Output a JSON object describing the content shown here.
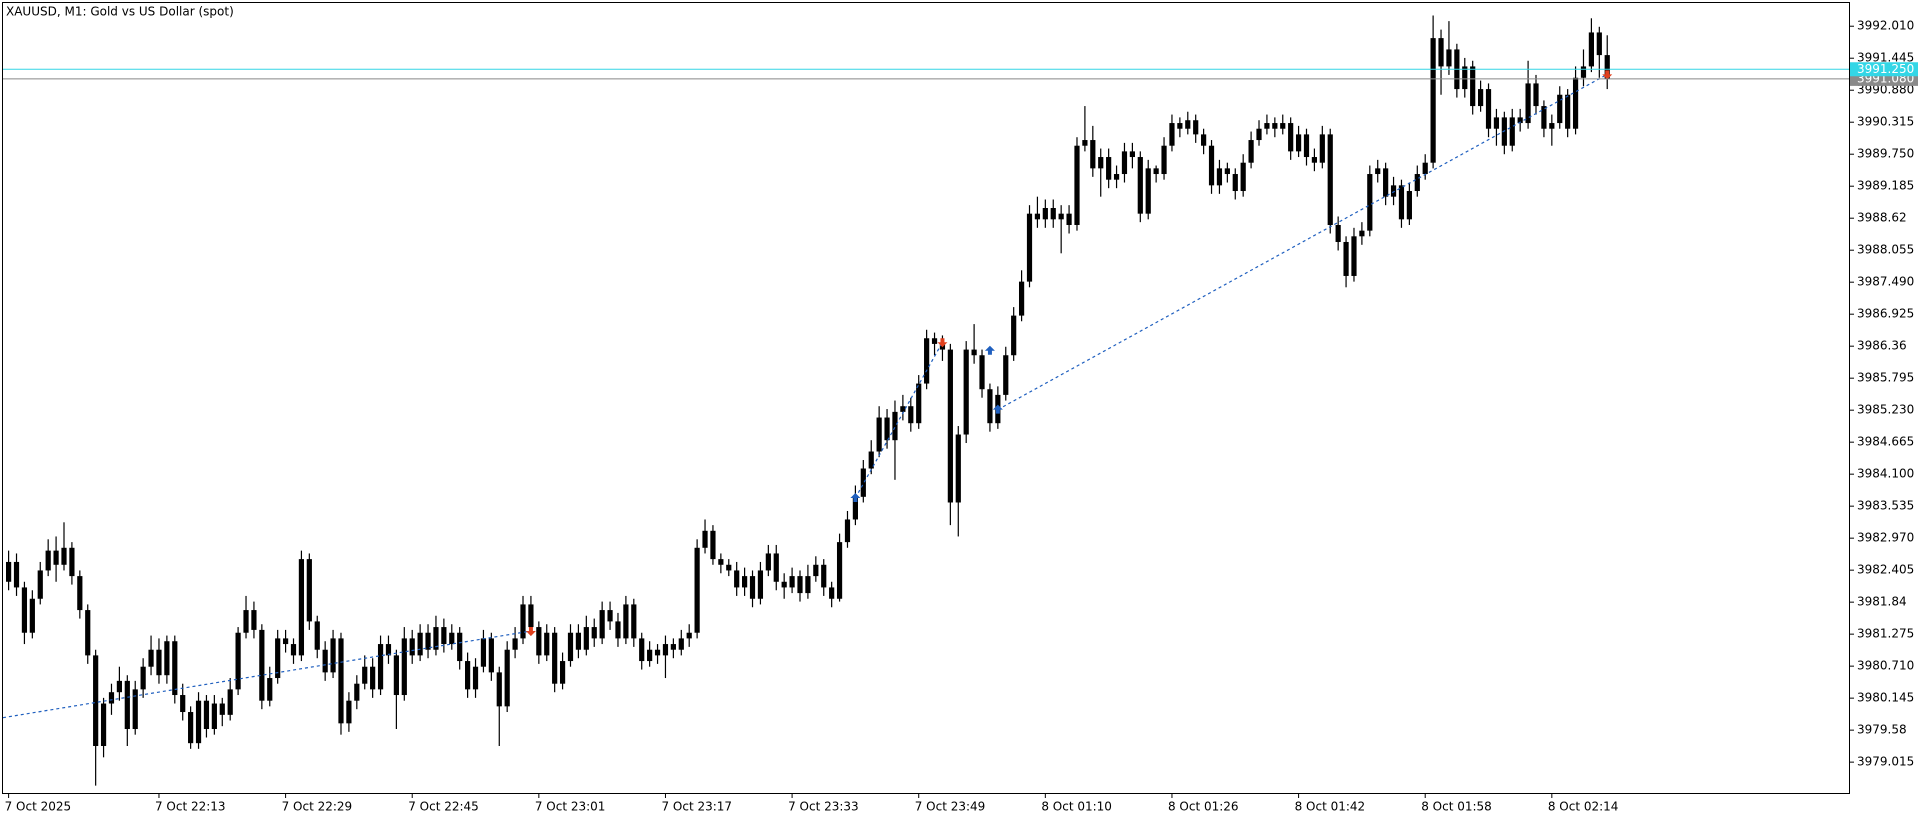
{
  "chart_data": {
    "type": "candlestick",
    "title": "XAUUSD, M1:  Gold vs US Dollar (spot)",
    "color": "#000000",
    "grid": false,
    "categories": [
      "7 Oct 2025",
      null,
      null,
      null,
      null,
      null,
      null,
      null,
      null,
      null,
      null,
      null,
      null,
      null,
      null,
      null,
      null,
      null,
      null,
      "7 Oct 22:13",
      null,
      null,
      null,
      null,
      null,
      null,
      null,
      null,
      null,
      null,
      null,
      null,
      null,
      null,
      null,
      "7 Oct 22:29",
      null,
      null,
      null,
      null,
      null,
      null,
      null,
      null,
      null,
      null,
      null,
      null,
      null,
      null,
      null,
      "7 Oct 22:45",
      null,
      null,
      null,
      null,
      null,
      null,
      null,
      null,
      null,
      null,
      null,
      null,
      null,
      null,
      null,
      "7 Oct 23:01",
      null,
      null,
      null,
      null,
      null,
      null,
      null,
      null,
      null,
      null,
      null,
      null,
      null,
      null,
      null,
      "7 Oct 23:17",
      null,
      null,
      null,
      null,
      null,
      null,
      null,
      null,
      null,
      null,
      null,
      null,
      null,
      null,
      null,
      "7 Oct 23:33",
      null,
      null,
      null,
      null,
      null,
      null,
      null,
      null,
      null,
      null,
      null,
      null,
      null,
      null,
      null,
      "7 Oct 23:49",
      null,
      null,
      null,
      null,
      null,
      null,
      null,
      null,
      null,
      null,
      null,
      null,
      null,
      null,
      null,
      "8 Oct 01:10",
      null,
      null,
      null,
      null,
      null,
      null,
      null,
      null,
      null,
      null,
      null,
      null,
      null,
      null,
      null,
      "8 Oct 01:26",
      null,
      null,
      null,
      null,
      null,
      null,
      null,
      null,
      null,
      null,
      null,
      null,
      null,
      null,
      null,
      "8 Oct 01:42",
      null,
      null,
      null,
      null,
      null,
      null,
      null,
      null,
      null,
      null,
      null,
      null,
      null,
      null,
      null,
      "8 Oct 01:58",
      null,
      null,
      null,
      null,
      null,
      null,
      null,
      null,
      null,
      null,
      null,
      null,
      null,
      null,
      null,
      "8 Oct 02:14",
      null,
      null,
      null,
      null,
      null,
      null,
      null
    ],
    "open": [
      3982.2,
      3982.55,
      3982.1,
      3981.3,
      3981.9,
      3982.4,
      3982.75,
      3982.5,
      3982.8,
      3982.3,
      3981.7,
      3980.9,
      3979.3,
      3980.05,
      3980.25,
      3980.45,
      3979.6,
      3980.3,
      3980.7,
      3981.0,
      3980.55,
      3981.15,
      3980.2,
      3979.9,
      3979.35,
      3980.1,
      3979.6,
      3980.05,
      3979.85,
      3980.3,
      3981.3,
      3981.7,
      3981.35,
      3980.1,
      3980.5,
      3981.2,
      3981.1,
      3980.9,
      3982.6,
      3981.5,
      3981.0,
      3980.6,
      3981.2,
      3979.7,
      3980.1,
      3980.4,
      3980.7,
      3980.3,
      3981.1,
      3980.9,
      3980.2,
      3981.2,
      3980.9,
      3981.3,
      3981.0,
      3981.4,
      3981.1,
      3981.3,
      3980.8,
      3980.3,
      3980.7,
      3981.2,
      3980.6,
      3980.0,
      3981.0,
      3981.2,
      3981.8,
      3981.4,
      3980.9,
      3981.3,
      3980.4,
      3980.8,
      3981.3,
      3981.0,
      3981.4,
      3981.2,
      3981.7,
      3981.5,
      3981.2,
      3981.8,
      3981.2,
      3980.8,
      3981.0,
      3980.9,
      3981.1,
      3981.0,
      3981.2,
      3981.3,
      3982.8,
      3983.1,
      3982.6,
      3982.5,
      3982.4,
      3982.1,
      3982.3,
      3981.9,
      3982.4,
      3982.7,
      3982.2,
      3982.1,
      3982.3,
      3982.0,
      3982.3,
      3982.5,
      3982.1,
      3981.9,
      3982.9,
      3983.3,
      3983.7,
      3984.2,
      3984.5,
      3985.1,
      3984.7,
      3985.2,
      3985.3,
      3985.0,
      3985.7,
      3986.5,
      3986.4,
      3986.3,
      3983.6,
      3984.8,
      3986.3,
      3986.2,
      3985.6,
      3985.0,
      3985.5,
      3986.2,
      3986.9,
      3987.5,
      3988.7,
      3988.6,
      3988.8,
      3988.6,
      3988.7,
      3988.5,
      3989.9,
      3990.0,
      3989.5,
      3989.7,
      3989.3,
      3989.4,
      3989.8,
      3989.7,
      3988.7,
      3989.5,
      3989.4,
      3989.9,
      3990.3,
      3990.2,
      3990.35,
      3990.1,
      3989.9,
      3989.2,
      3989.5,
      3989.4,
      3989.1,
      3989.6,
      3990.0,
      3990.2,
      3990.3,
      3990.2,
      3990.3,
      3989.8,
      3990.1,
      3989.7,
      3989.6,
      3990.1,
      3988.5,
      3988.2,
      3987.6,
      3988.3,
      3988.4,
      3989.4,
      3989.5,
      3989.0,
      3989.2,
      3988.6,
      3989.1,
      3989.4,
      3989.6,
      3991.8,
      3991.3,
      3991.6,
      3990.9,
      3991.3,
      3990.6,
      3990.9,
      3990.2,
      3990.4,
      3989.9,
      3990.4,
      3990.3,
      3991.0,
      3990.6,
      3990.2,
      3990.3,
      3990.8,
      3990.2,
      3991.1,
      3991.3,
      3991.9,
      3991.5
    ],
    "high": [
      3982.75,
      3982.7,
      3982.2,
      3982.05,
      3982.55,
      3982.95,
      3983.0,
      3983.25,
      3982.9,
      3982.4,
      3981.8,
      3981.0,
      3980.15,
      3980.4,
      3980.7,
      3980.55,
      3980.45,
      3980.85,
      3981.25,
      3981.2,
      3981.25,
      3981.25,
      3980.4,
      3980.0,
      3980.25,
      3980.2,
      3980.2,
      3980.15,
      3980.5,
      3981.4,
      3981.95,
      3981.85,
      3981.45,
      3980.7,
      3981.35,
      3981.35,
      3981.2,
      3982.75,
      3982.7,
      3981.6,
      3981.15,
      3981.35,
      3981.3,
      3980.25,
      3980.55,
      3980.9,
      3980.85,
      3981.25,
      3981.25,
      3981.0,
      3981.4,
      3981.35,
      3981.45,
      3981.45,
      3981.6,
      3981.55,
      3981.45,
      3981.4,
      3980.95,
      3980.85,
      3981.35,
      3981.3,
      3980.7,
      3981.15,
      3981.4,
      3981.95,
      3981.95,
      3981.5,
      3981.45,
      3981.4,
      3980.95,
      3981.45,
      3981.45,
      3981.6,
      3981.55,
      3981.85,
      3981.85,
      3981.65,
      3981.95,
      3981.9,
      3981.3,
      3981.15,
      3981.1,
      3981.25,
      3981.2,
      3981.35,
      3981.45,
      3982.95,
      3983.3,
      3983.2,
      3982.7,
      3982.6,
      3982.55,
      3982.45,
      3982.4,
      3982.55,
      3982.85,
      3982.85,
      3982.35,
      3982.45,
      3982.4,
      3982.5,
      3982.65,
      3982.6,
      3982.2,
      3983.05,
      3983.45,
      3983.9,
      3984.35,
      3984.7,
      3985.3,
      3985.25,
      3985.4,
      3985.5,
      3985.45,
      3985.85,
      3986.65,
      3986.6,
      3986.55,
      3986.4,
      3984.95,
      3986.45,
      3986.75,
      3986.3,
      3985.7,
      3985.65,
      3986.35,
      3987.05,
      3987.7,
      3988.85,
      3989.0,
      3988.95,
      3988.95,
      3988.85,
      3988.85,
      3990.05,
      3990.6,
      3990.25,
      3989.85,
      3989.85,
      3989.55,
      3989.95,
      3989.95,
      3989.8,
      3989.65,
      3989.55,
      3990.05,
      3990.45,
      3990.4,
      3990.5,
      3990.45,
      3990.2,
      3990.0,
      3989.65,
      3989.6,
      3989.5,
      3989.75,
      3990.15,
      3990.35,
      3990.45,
      3990.4,
      3990.45,
      3990.4,
      3990.25,
      3990.2,
      3989.85,
      3990.25,
      3990.2,
      3988.65,
      3988.3,
      3988.45,
      3988.55,
      3989.55,
      3989.65,
      3989.6,
      3989.35,
      3989.3,
      3989.25,
      3989.55,
      3989.75,
      3992.2,
      3991.95,
      3992.1,
      3991.7,
      3991.45,
      3991.4,
      3991.05,
      3991.0,
      3990.55,
      3990.5,
      3990.55,
      3990.55,
      3991.4,
      3991.15,
      3990.7,
      3990.45,
      3990.95,
      3990.9,
      3991.3,
      3991.6,
      3992.15,
      3992.0,
      3991.85
    ],
    "low": [
      3982.05,
      3981.95,
      3981.1,
      3981.2,
      3981.8,
      3982.3,
      3982.2,
      3982.4,
      3982.15,
      3981.55,
      3980.75,
      3978.6,
      3979.1,
      3979.85,
      3980.1,
      3979.3,
      3979.5,
      3980.15,
      3980.55,
      3980.4,
      3980.4,
      3980.05,
      3979.75,
      3979.25,
      3979.25,
      3979.45,
      3979.5,
      3979.65,
      3979.75,
      3980.2,
      3981.2,
      3981.2,
      3979.95,
      3980.0,
      3980.4,
      3980.95,
      3980.75,
      3980.8,
      3981.35,
      3980.85,
      3980.45,
      3980.5,
      3979.5,
      3979.55,
      3979.95,
      3980.3,
      3980.15,
      3980.2,
      3980.75,
      3979.6,
      3980.1,
      3980.75,
      3980.8,
      3980.85,
      3980.9,
      3980.95,
      3981.0,
      3980.65,
      3980.15,
      3980.15,
      3980.6,
      3980.45,
      3979.3,
      3979.9,
      3980.85,
      3981.1,
      3981.25,
      3980.75,
      3980.8,
      3980.25,
      3980.3,
      3980.7,
      3980.85,
      3980.9,
      3981.05,
      3981.1,
      3981.35,
      3981.05,
      3981.1,
      3981.05,
      3980.65,
      3980.7,
      3980.75,
      3980.5,
      3980.85,
      3980.9,
      3981.05,
      3981.2,
      3982.7,
      3982.5,
      3982.35,
      3982.3,
      3981.95,
      3981.95,
      3981.75,
      3981.8,
      3982.3,
      3982.05,
      3981.9,
      3982.0,
      3981.85,
      3981.9,
      3982.2,
      3981.95,
      3981.75,
      3981.85,
      3982.8,
      3983.2,
      3983.6,
      3984.1,
      3984.4,
      3984.55,
      3984.0,
      3985.05,
      3984.85,
      3984.9,
      3985.6,
      3986.2,
      3986.1,
      3983.2,
      3983.0,
      3984.65,
      3986.05,
      3985.45,
      3984.85,
      3984.9,
      3985.4,
      3986.1,
      3986.8,
      3987.4,
      3988.45,
      3988.45,
      3988.45,
      3988.0,
      3988.35,
      3988.4,
      3989.8,
      3989.35,
      3989.0,
      3989.15,
      3989.15,
      3989.25,
      3989.5,
      3988.55,
      3988.6,
      3989.25,
      3989.3,
      3989.8,
      3990.05,
      3990.1,
      3989.95,
      3989.75,
      3989.05,
      3989.05,
      3989.25,
      3988.95,
      3989.0,
      3989.5,
      3989.9,
      3990.1,
      3990.05,
      3990.1,
      3989.65,
      3989.7,
      3989.55,
      3989.45,
      3989.5,
      3988.35,
      3988.05,
      3987.4,
      3987.5,
      3988.15,
      3988.3,
      3989.25,
      3988.85,
      3988.85,
      3988.45,
      3988.5,
      3989.0,
      3989.3,
      3989.5,
      3990.8,
      3991.15,
      3990.75,
      3990.75,
      3990.45,
      3990.5,
      3990.05,
      3989.9,
      3989.75,
      3989.8,
      3990.15,
      3990.2,
      3990.45,
      3990.05,
      3989.9,
      3990.2,
      3990.05,
      3990.1,
      3990.95,
      3991.2,
      3991.1,
      3990.9
    ],
    "close": [
      3982.55,
      3982.1,
      3981.3,
      3981.9,
      3982.4,
      3982.75,
      3982.5,
      3982.8,
      3982.3,
      3981.7,
      3980.9,
      3979.3,
      3980.05,
      3980.25,
      3980.45,
      3979.6,
      3980.3,
      3980.7,
      3981.0,
      3980.55,
      3981.15,
      3980.2,
      3979.9,
      3979.35,
      3980.1,
      3979.6,
      3980.05,
      3979.85,
      3980.3,
      3981.3,
      3981.7,
      3981.35,
      3980.1,
      3980.5,
      3981.2,
      3981.1,
      3980.9,
      3982.6,
      3981.5,
      3981.0,
      3980.6,
      3981.2,
      3979.7,
      3980.1,
      3980.4,
      3980.7,
      3980.3,
      3981.1,
      3980.9,
      3980.2,
      3981.2,
      3980.9,
      3981.3,
      3981.0,
      3981.4,
      3981.1,
      3981.3,
      3980.8,
      3980.3,
      3980.7,
      3981.2,
      3980.6,
      3980.0,
      3981.0,
      3981.2,
      3981.8,
      3981.4,
      3980.9,
      3981.3,
      3980.4,
      3980.8,
      3981.3,
      3981.0,
      3981.4,
      3981.2,
      3981.7,
      3981.5,
      3981.2,
      3981.8,
      3981.2,
      3980.8,
      3981.0,
      3980.9,
      3981.1,
      3981.0,
      3981.2,
      3981.3,
      3982.8,
      3983.1,
      3982.6,
      3982.5,
      3982.4,
      3982.1,
      3982.3,
      3981.9,
      3982.4,
      3982.7,
      3982.2,
      3982.1,
      3982.3,
      3982.0,
      3982.3,
      3982.5,
      3982.1,
      3981.9,
      3982.9,
      3983.3,
      3983.7,
      3984.2,
      3984.5,
      3985.1,
      3984.7,
      3985.2,
      3985.3,
      3985.0,
      3985.7,
      3986.5,
      3986.4,
      3986.3,
      3983.6,
      3984.8,
      3986.3,
      3986.2,
      3985.6,
      3985.0,
      3985.5,
      3986.2,
      3986.9,
      3987.5,
      3988.7,
      3988.6,
      3988.8,
      3988.6,
      3988.7,
      3988.5,
      3989.9,
      3990.0,
      3989.5,
      3989.7,
      3989.3,
      3989.4,
      3989.8,
      3989.7,
      3988.7,
      3989.5,
      3989.4,
      3989.9,
      3990.3,
      3990.2,
      3990.35,
      3990.1,
      3989.9,
      3989.2,
      3989.5,
      3989.4,
      3989.1,
      3989.6,
      3990.0,
      3990.2,
      3990.3,
      3990.2,
      3990.3,
      3989.8,
      3990.1,
      3989.7,
      3989.6,
      3990.1,
      3988.5,
      3988.2,
      3987.6,
      3988.3,
      3988.4,
      3989.4,
      3989.5,
      3989.0,
      3989.2,
      3988.6,
      3989.1,
      3989.4,
      3989.6,
      3991.8,
      3991.3,
      3991.6,
      3990.9,
      3991.3,
      3990.6,
      3990.9,
      3990.2,
      3990.4,
      3989.9,
      3990.4,
      3990.3,
      3991.0,
      3990.6,
      3990.2,
      3990.3,
      3990.8,
      3990.2,
      3991.1,
      3991.3,
      3991.9,
      3991.5,
      3991.08
    ],
    "ylim": [
      3978.47,
      3992.42
    ],
    "yticks": [
      3979.015,
      3979.58,
      3980.145,
      {
        "value": 3980.71,
        "label": "3980.710"
      },
      3981.275,
      3981.84,
      3982.405,
      {
        "value": 3982.97,
        "label": "3982.970"
      },
      3983.535,
      {
        "value": 3984.1,
        "label": "3984.100"
      },
      3984.665,
      {
        "value": 3985.23,
        "label": "3985.230"
      },
      3985.795,
      3986.36,
      3986.925,
      {
        "value": 3987.49,
        "label": "3987.490"
      },
      3988.055,
      3988.62,
      3989.185,
      {
        "value": 3989.75,
        "label": "3989.750"
      },
      3990.315,
      {
        "value": 3990.88,
        "label": "3990.880"
      },
      3991.445,
      {
        "value": 3992.01,
        "label": "3992.010"
      }
    ],
    "ask": {
      "value": 3991.25,
      "label": "3991.250"
    },
    "bid": {
      "value": 3991.08,
      "label": "3991.080"
    },
    "markers": [
      {
        "index": 66,
        "price": 3981.33,
        "side": "sell"
      },
      {
        "index": 107,
        "price": 3983.68,
        "side": "buy"
      },
      {
        "index": 118,
        "price": 3986.43,
        "side": "sell"
      },
      {
        "index": 124,
        "price": 3986.28,
        "side": "buy"
      },
      {
        "index": 125,
        "price": 3985.24,
        "side": "buy"
      },
      {
        "index": 202,
        "price": 3991.16,
        "side": "sell"
      }
    ],
    "trade_lines": [
      {
        "from_index": 0,
        "from_price": 3979.8,
        "to_index": 66,
        "to_price": 3981.33
      },
      {
        "from_index": 107,
        "from_price": 3983.68,
        "to_index": 118,
        "to_price": 3986.43
      },
      {
        "from_index": 125,
        "from_price": 3985.24,
        "to_index": 202,
        "to_price": 3991.16
      }
    ]
  }
}
